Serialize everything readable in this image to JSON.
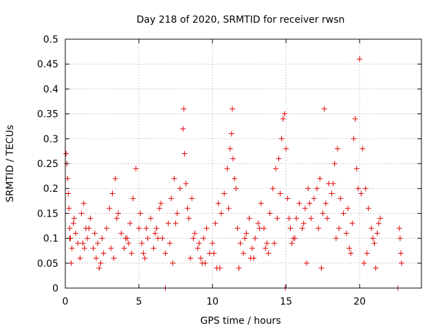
{
  "chart_data": {
    "type": "scatter",
    "title": "Day 218 of 2020, SRMTID for receiver rwsn",
    "xlabel": "GPS time / hours",
    "ylabel": "SRMTID / TECUs",
    "xlim": [
      0,
      24.2
    ],
    "ylim": [
      0,
      0.5
    ],
    "xticks": [
      0,
      5,
      10,
      15,
      20
    ],
    "xtick_labels": [
      "0",
      "5",
      "10",
      "15",
      "20"
    ],
    "yticks": [
      0,
      0.05,
      0.1,
      0.15,
      0.2,
      0.25,
      0.3,
      0.35,
      0.4,
      0.45,
      0.5
    ],
    "ytick_labels": [
      "0",
      "0.05",
      "0.1",
      "0.15",
      "0.2",
      "0.25",
      "0.3",
      "0.35",
      "0.4",
      "0.45",
      "0.5"
    ],
    "grid": true,
    "marker": "+",
    "marker_color": "#e00000",
    "x": [
      0.05,
      0.1,
      0.15,
      0.2,
      0.25,
      0.3,
      0.35,
      0.45,
      0.55,
      0.7,
      0.85,
      1.0,
      1.1,
      1.25,
      1.4,
      1.5,
      1.7,
      1.9,
      2.0,
      2.2,
      2.4,
      2.6,
      2.8,
      3.0,
      3.2,
      3.4,
      3.6,
      3.8,
      4.0,
      4.2,
      4.4,
      4.6,
      4.8,
      5.0,
      5.2,
      5.4,
      5.6,
      5.8,
      6.0,
      6.2,
      6.4,
      6.6,
      6.8,
      7.0,
      7.2,
      7.4,
      7.6,
      7.8,
      8.0,
      8.05,
      8.1,
      8.2,
      8.4,
      8.6,
      8.8,
      9.0,
      9.2,
      9.4,
      9.6,
      9.8,
      10.0,
      10.2,
      10.4,
      10.6,
      10.8,
      11.0,
      11.2,
      11.3,
      11.35,
      11.4,
      11.5,
      11.7,
      11.9,
      12.1,
      12.3,
      12.5,
      12.7,
      12.9,
      13.1,
      13.3,
      13.5,
      13.7,
      13.9,
      14.1,
      14.3,
      14.5,
      14.7,
      14.8,
      14.9,
      15.0,
      15.1,
      15.3,
      15.5,
      15.7,
      15.9,
      16.1,
      16.3,
      16.5,
      16.7,
      16.9,
      17.1,
      17.3,
      17.5,
      17.6,
      17.7,
      17.9,
      18.1,
      18.3,
      18.5,
      18.7,
      18.9,
      19.1,
      19.3,
      19.5,
      19.6,
      19.7,
      19.8,
      19.9,
      20.0,
      20.2,
      20.4,
      20.6,
      20.8,
      21.0,
      21.2,
      21.4,
      22.7,
      22.75,
      22.8,
      22.85,
      0.3,
      0.6,
      1.2,
      1.6,
      2.1,
      2.5,
      3.1,
      3.5,
      4.1,
      4.5,
      5.1,
      5.5,
      6.1,
      6.5,
      7.1,
      7.5,
      8.3,
      8.7,
      9.1,
      9.5,
      10.1,
      10.5,
      11.1,
      11.6,
      12.2,
      12.6,
      13.2,
      13.6,
      14.2,
      14.6,
      15.2,
      15.6,
      16.2,
      16.6,
      17.2,
      17.8,
      18.2,
      18.6,
      19.2,
      20.1,
      20.5,
      20.9,
      21.3,
      0.4,
      1.3,
      2.3,
      3.3,
      4.3,
      5.3,
      6.3,
      7.3,
      8.5,
      9.3,
      10.3,
      11.8,
      12.8,
      13.8,
      14.4,
      15.4,
      16.4,
      17.4,
      18.4,
      19.4,
      20.3,
      21.1,
      6.8,
      14.95,
      22.6
    ],
    "y": [
      0.27,
      0.25,
      0.22,
      0.19,
      0.16,
      0.12,
      0.1,
      0.08,
      0.13,
      0.11,
      0.09,
      0.06,
      0.15,
      0.17,
      0.12,
      0.1,
      0.14,
      0.08,
      0.11,
      0.09,
      0.05,
      0.07,
      0.12,
      0.16,
      0.19,
      0.22,
      0.15,
      0.11,
      0.08,
      0.1,
      0.13,
      0.18,
      0.24,
      0.12,
      0.09,
      0.06,
      0.1,
      0.14,
      0.08,
      0.12,
      0.16,
      0.1,
      0.07,
      0.13,
      0.18,
      0.22,
      0.15,
      0.2,
      0.32,
      0.36,
      0.27,
      0.21,
      0.14,
      0.18,
      0.11,
      0.08,
      0.06,
      0.1,
      0.12,
      0.07,
      0.09,
      0.13,
      0.17,
      0.15,
      0.19,
      0.24,
      0.28,
      0.31,
      0.36,
      0.26,
      0.22,
      0.12,
      0.09,
      0.07,
      0.11,
      0.14,
      0.08,
      0.1,
      0.13,
      0.17,
      0.12,
      0.09,
      0.15,
      0.2,
      0.24,
      0.26,
      0.3,
      0.34,
      0.35,
      0.28,
      0.18,
      0.12,
      0.1,
      0.14,
      0.17,
      0.12,
      0.16,
      0.2,
      0.14,
      0.18,
      0.2,
      0.22,
      0.15,
      0.36,
      0.17,
      0.21,
      0.19,
      0.25,
      0.28,
      0.18,
      0.15,
      0.11,
      0.08,
      0.13,
      0.3,
      0.34,
      0.24,
      0.2,
      0.46,
      0.28,
      0.2,
      0.16,
      0.12,
      0.09,
      0.11,
      0.14,
      0.12,
      0.1,
      0.07,
      0.05,
      0.1,
      0.14,
      0.09,
      0.12,
      0.06,
      0.1,
      0.08,
      0.14,
      0.1,
      0.07,
      0.15,
      0.12,
      0.11,
      0.17,
      0.09,
      0.13,
      0.16,
      0.1,
      0.09,
      0.05,
      0.07,
      0.04,
      0.16,
      0.2,
      0.1,
      0.06,
      0.12,
      0.08,
      0.09,
      0.19,
      0.14,
      0.1,
      0.13,
      0.17,
      0.12,
      0.14,
      0.21,
      0.12,
      0.16,
      0.19,
      0.07,
      0.1,
      0.13,
      0.05,
      0.08,
      0.04,
      0.06,
      0.09,
      0.07,
      0.1,
      0.05,
      0.06,
      0.05,
      0.04,
      0.04,
      0.06,
      0.07,
      0.14,
      0.09,
      0.05,
      0.04,
      0.1,
      0.07,
      0.05,
      0.04,
      0.0,
      0.0,
      0.0
    ]
  }
}
